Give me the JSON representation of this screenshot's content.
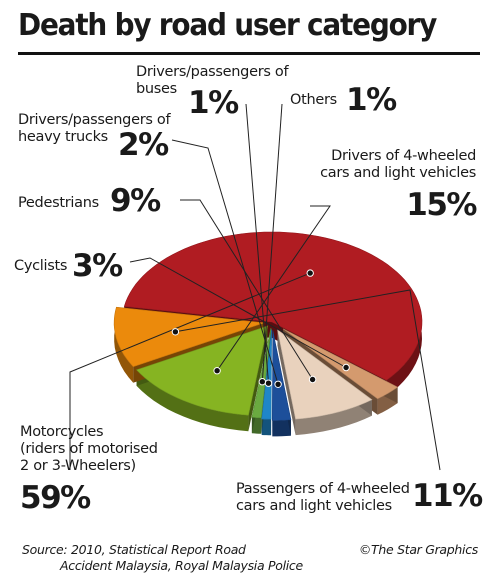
{
  "title": "Death by road user category",
  "chart_data": {
    "type": "pie",
    "title": "Death by road user category",
    "slices": [
      {
        "label_lines": [
          "Motorcycles",
          "(riders of motorised",
          "2 or 3-Wheelers)"
        ],
        "value": 59,
        "display": "59%",
        "color": "#b01c22"
      },
      {
        "label_lines": [
          "Cyclists"
        ],
        "value": 3,
        "display": "3%",
        "color": "#d49a6e"
      },
      {
        "label_lines": [
          "Pedestrians"
        ],
        "value": 9,
        "display": "9%",
        "color": "#e9d2bd"
      },
      {
        "label_lines": [
          "Drivers/passengers of",
          "heavy trucks"
        ],
        "value": 2,
        "display": "2%",
        "color": "#1d4f9a"
      },
      {
        "label_lines": [
          "Drivers/passengers of",
          "buses"
        ],
        "value": 1,
        "display": "1%",
        "color": "#1f86c8"
      },
      {
        "label_lines": [
          "Others"
        ],
        "value": 1,
        "display": "1%",
        "color": "#6aaa40"
      },
      {
        "label_lines": [
          "Drivers of 4-wheeled",
          "cars and light vehicles"
        ],
        "value": 15,
        "display": "15%",
        "color": "#86b422"
      },
      {
        "label_lines": [
          "Passengers of 4-wheeled",
          "cars and light vehicles"
        ],
        "value": 11,
        "display": "11%",
        "color": "#eb8a0c"
      }
    ]
  },
  "source_lines": [
    "Source: 2010, Statistical Report Road",
    "Accident Malaysia, Royal Malaysia Police"
  ],
  "credit": "©The Star Graphics"
}
